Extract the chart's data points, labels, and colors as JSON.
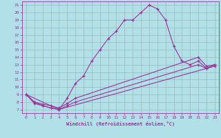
{
  "xlabel": "Windchill (Refroidissement éolien,°C)",
  "bg_color": "#b2e0e8",
  "grid_color": "#9ab8b8",
  "line_color": "#993399",
  "spine_color": "#993399",
  "xlim": [
    -0.5,
    23.5
  ],
  "ylim": [
    6.5,
    21.5
  ],
  "xticks": [
    0,
    1,
    2,
    3,
    4,
    5,
    6,
    7,
    8,
    9,
    10,
    11,
    12,
    13,
    14,
    15,
    16,
    17,
    18,
    19,
    20,
    21,
    22,
    23
  ],
  "yticks": [
    7,
    8,
    9,
    10,
    11,
    12,
    13,
    14,
    15,
    16,
    17,
    18,
    19,
    20,
    21
  ],
  "line1_x": [
    0,
    1,
    2,
    3,
    4,
    5,
    6,
    7,
    8,
    9,
    10,
    11,
    12,
    13,
    14,
    15,
    16,
    17,
    18,
    19,
    20,
    21,
    22,
    23
  ],
  "line1_y": [
    9.0,
    8.0,
    7.5,
    7.2,
    7.0,
    8.5,
    10.5,
    11.5,
    13.5,
    15.0,
    16.5,
    17.5,
    19.0,
    19.0,
    20.0,
    21.0,
    20.5,
    19.0,
    15.5,
    13.5,
    13.0,
    13.5,
    12.5,
    13.0
  ],
  "line2_x": [
    0,
    1,
    2,
    3,
    4,
    5,
    6,
    21,
    22,
    23
  ],
  "line2_y": [
    9.0,
    8.0,
    7.7,
    7.5,
    7.2,
    7.8,
    8.5,
    14.0,
    12.8,
    13.0
  ],
  "line3_x": [
    0,
    1,
    2,
    3,
    4,
    5,
    6,
    21,
    22,
    23
  ],
  "line3_y": [
    9.0,
    7.8,
    7.5,
    7.2,
    7.0,
    7.5,
    8.0,
    13.0,
    12.5,
    12.8
  ],
  "line4_x": [
    0,
    4,
    22,
    23
  ],
  "line4_y": [
    9.0,
    7.0,
    12.5,
    13.0
  ]
}
